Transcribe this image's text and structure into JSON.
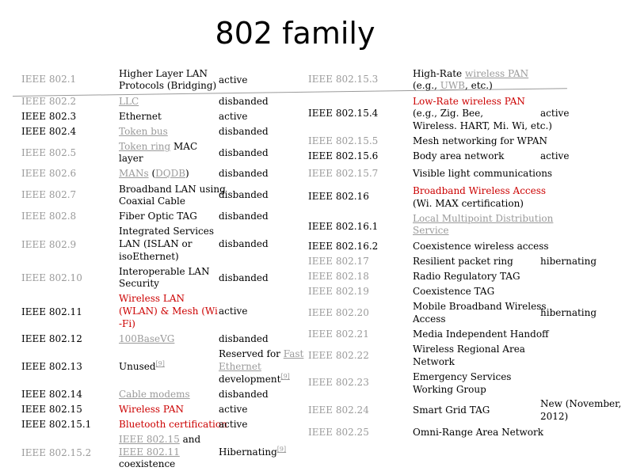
{
  "title": "802 family",
  "left": [
    {
      "id": "IEEE 802.1",
      "desc": [
        "Higher Layer LAN",
        "Protocols (Bridging)"
      ],
      "status": "active"
    },
    {
      "id": "IEEE 802.2",
      "desc": [
        "LLC"
      ],
      "status": "disbanded"
    },
    {
      "id": "IEEE 802.3",
      "desc": [
        "Ethernet"
      ],
      "status": "active"
    },
    {
      "id": "IEEE 802.4",
      "desc": [
        "Token bus"
      ],
      "status": "disbanded"
    },
    {
      "id": "IEEE 802.5",
      "desc_link": "Token ring",
      "desc_rest": " MAC",
      "desc2": "layer",
      "status": "disbanded"
    },
    {
      "id": "IEEE 802.6",
      "desc_link": "MANs",
      "desc_mid": " (",
      "desc_link2": "DQDB",
      "desc_end": ")",
      "status": "disbanded"
    },
    {
      "id": "IEEE 802.7",
      "desc": [
        "Broadband LAN using",
        "Coaxial Cable"
      ],
      "status": "disbanded"
    },
    {
      "id": "IEEE 802.8",
      "desc": [
        "Fiber Optic TAG"
      ],
      "status": "disbanded"
    },
    {
      "id": "IEEE 802.9",
      "desc": [
        "Integrated Services",
        "LAN (ISLAN or",
        "isoEthernet)"
      ],
      "status": "disbanded"
    },
    {
      "id": "IEEE 802.10",
      "desc": [
        "Interoperable LAN",
        "Security"
      ],
      "status": "disbanded"
    },
    {
      "id": "IEEE 802.11",
      "desc": [
        "Wireless LAN",
        "(WLAN) & Mesh (Wi",
        "-Fi)"
      ],
      "status": "active"
    },
    {
      "id": "IEEE 802.12",
      "desc": [
        "100BaseVG"
      ],
      "status": "disbanded"
    },
    {
      "id": "IEEE 802.13",
      "desc": [
        "Unused"
      ],
      "desc_sup": "[9]",
      "status": [
        "Reserved for ",
        "Fast",
        "Ethernet",
        "development"
      ],
      "status_sup": "[9]"
    },
    {
      "id": "IEEE 802.14",
      "desc": [
        "Cable modems"
      ],
      "status": "disbanded"
    },
    {
      "id": "IEEE 802.15",
      "desc": [
        "Wireless PAN"
      ],
      "status": "active"
    },
    {
      "id": "IEEE 802.15.1",
      "desc": [
        "Bluetooth certification"
      ],
      "status": "active"
    },
    {
      "id": "IEEE 802.15.2",
      "desc": [
        "IEEE 802.15",
        " and",
        "IEEE 802.11",
        "coexistence"
      ],
      "status": "Hibernating",
      "status_sup": "[9]"
    }
  ],
  "right": [
    {
      "id": "IEEE 802.15.3",
      "desc": [
        "High-Rate ",
        "wireless PAN",
        "(e.g., ",
        "UWB",
        ", etc.)"
      ]
    },
    {
      "id": "IEEE 802.15.4",
      "desc": [
        "Low-Rate wireless PAN",
        "(e.g., Zig. Bee,",
        "Wireless. HART, Mi. Wi, etc.)"
      ],
      "status": "active"
    },
    {
      "id": "IEEE 802.15.5",
      "desc": [
        "Mesh networking for WPAN"
      ]
    },
    {
      "id": "IEEE 802.15.6",
      "desc": [
        "Body area network"
      ],
      "status": "active"
    },
    {
      "id": "IEEE 802.15.7",
      "desc": [
        "Visible light communications"
      ]
    },
    {
      "id": "IEEE 802.16",
      "desc": [
        "Broadband Wireless Access",
        "(Wi. MAX certification)"
      ]
    },
    {
      "id": "IEEE 802.16.1",
      "desc": [
        "Local Multipoint Distribution",
        "Service"
      ]
    },
    {
      "id": "IEEE 802.16.2",
      "desc": [
        "Coexistence wireless access"
      ]
    },
    {
      "id": "IEEE 802.17",
      "desc": [
        "Resilient packet ring"
      ],
      "status": "hibernating"
    },
    {
      "id": "IEEE 802.18",
      "desc": [
        "Radio Regulatory TAG"
      ]
    },
    {
      "id": "IEEE 802.19",
      "desc": [
        "Coexistence TAG"
      ]
    },
    {
      "id": "IEEE 802.20",
      "desc": [
        "Mobile Broadband Wireless",
        "Access"
      ],
      "status": "hibernating"
    },
    {
      "id": "IEEE 802.21",
      "desc": [
        "Media Independent Handoff"
      ]
    },
    {
      "id": "IEEE 802.22",
      "desc": [
        "Wireless Regional Area",
        "Network"
      ]
    },
    {
      "id": "IEEE 802.23",
      "desc": [
        "Emergency Services",
        "Working Group"
      ]
    },
    {
      "id": "IEEE 802.24",
      "desc": [
        "Smart Grid TAG"
      ],
      "status": [
        "New (November,",
        "2012)"
      ]
    },
    {
      "id": "IEEE 802.25",
      "desc": [
        "Omni-Range Area Network"
      ]
    }
  ]
}
